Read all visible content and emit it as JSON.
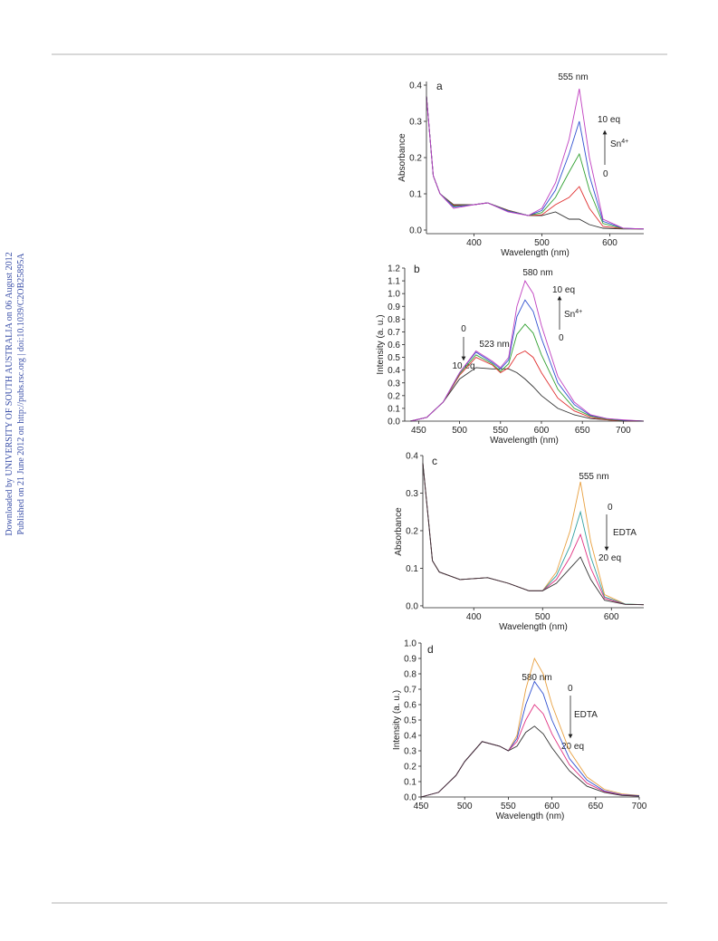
{
  "margin_notes": [
    "Downloaded by UNIVERSITY OF SOUTH AUSTRALIA on 06 August 2012",
    "Published on 21 June 2012 on http://pubs.rsc.org | doi:10.1039/C2OB25895A"
  ],
  "chart_data": [
    {
      "type": "line",
      "x_label": "Wavelength (nm)",
      "y_label": "Absorbance",
      "annotations": [
        "a",
        "555 nm",
        "10 eq",
        "Sn",
        "4+",
        "0"
      ],
      "xlim": [
        330,
        650
      ],
      "ylim": [
        -0.01,
        0.41
      ],
      "xticks": [
        400,
        500,
        600
      ],
      "yticks": [
        {
          "value": 0,
          "label": "0.0"
        },
        0.1,
        0.2,
        0.3,
        0.4
      ],
      "x": [
        330,
        340,
        350,
        370,
        400,
        420,
        450,
        480,
        500,
        520,
        540,
        555,
        570,
        590,
        620,
        650
      ],
      "series": [
        {
          "color": "#333333",
          "values": [
            0.37,
            0.15,
            0.1,
            0.07,
            0.07,
            0.075,
            0.055,
            0.04,
            0.04,
            0.05,
            0.03,
            0.03,
            0.015,
            0.005,
            0.003,
            0.003
          ]
        },
        {
          "color": "#e03030",
          "values": [
            0.37,
            0.15,
            0.1,
            0.068,
            0.07,
            0.075,
            0.054,
            0.04,
            0.042,
            0.07,
            0.09,
            0.12,
            0.06,
            0.01,
            0.004,
            0.003
          ]
        },
        {
          "color": "#30a030",
          "values": [
            0.37,
            0.15,
            0.1,
            0.066,
            0.07,
            0.075,
            0.053,
            0.04,
            0.048,
            0.09,
            0.16,
            0.21,
            0.11,
            0.018,
            0.004,
            0.003
          ]
        },
        {
          "color": "#3050d0",
          "values": [
            0.37,
            0.15,
            0.1,
            0.064,
            0.07,
            0.075,
            0.052,
            0.04,
            0.054,
            0.11,
            0.21,
            0.3,
            0.15,
            0.024,
            0.005,
            0.003
          ]
        },
        {
          "color": "#c040c0",
          "values": [
            0.37,
            0.15,
            0.1,
            0.06,
            0.07,
            0.075,
            0.05,
            0.04,
            0.06,
            0.13,
            0.25,
            0.39,
            0.2,
            0.03,
            0.005,
            0.003
          ]
        }
      ]
    },
    {
      "type": "line",
      "x_label": "Wavelength (nm)",
      "y_label": "Intensity (a. u.)",
      "annotations": [
        "b",
        "580 nm",
        "10 eq",
        "Sn",
        "4+",
        "0",
        "0",
        "10 eq",
        "523 nm"
      ],
      "xlim": [
        433,
        725
      ],
      "ylim": [
        0,
        1.2
      ],
      "xticks": [
        450,
        500,
        550,
        600,
        650,
        700
      ],
      "yticks": [
        {
          "value": 0,
          "label": "0.0"
        },
        0.1,
        0.2,
        0.3,
        0.4,
        0.5,
        0.6,
        0.7,
        0.8,
        0.9,
        {
          "value": 1,
          "label": "1.0"
        },
        1.1,
        1.2
      ],
      "x": [
        440,
        460,
        480,
        500,
        520,
        540,
        550,
        560,
        570,
        580,
        590,
        600,
        620,
        640,
        660,
        680,
        700,
        725
      ],
      "series": [
        {
          "color": "#333333",
          "values": [
            0,
            0.03,
            0.15,
            0.33,
            0.42,
            0.41,
            0.41,
            0.41,
            0.38,
            0.33,
            0.27,
            0.2,
            0.1,
            0.05,
            0.02,
            0.01,
            0,
            0
          ]
        },
        {
          "color": "#e03030",
          "values": [
            0,
            0.03,
            0.15,
            0.36,
            0.5,
            0.44,
            0.38,
            0.42,
            0.52,
            0.55,
            0.5,
            0.38,
            0.18,
            0.08,
            0.03,
            0.01,
            0,
            0
          ]
        },
        {
          "color": "#30a030",
          "values": [
            0,
            0.03,
            0.15,
            0.37,
            0.52,
            0.45,
            0.39,
            0.45,
            0.68,
            0.76,
            0.69,
            0.52,
            0.25,
            0.1,
            0.04,
            0.015,
            0.005,
            0
          ]
        },
        {
          "color": "#3050d0",
          "values": [
            0,
            0.03,
            0.15,
            0.38,
            0.54,
            0.46,
            0.41,
            0.48,
            0.82,
            0.95,
            0.86,
            0.65,
            0.3,
            0.13,
            0.045,
            0.02,
            0.008,
            0
          ]
        },
        {
          "color": "#c040c0",
          "values": [
            0,
            0.03,
            0.15,
            0.38,
            0.55,
            0.47,
            0.42,
            0.5,
            0.9,
            1.1,
            1.0,
            0.75,
            0.35,
            0.15,
            0.05,
            0.02,
            0.01,
            0
          ]
        }
      ]
    },
    {
      "type": "line",
      "x_label": "Wavelength (nm)",
      "y_label": "Absorbance",
      "annotations": [
        "c",
        "555 nm",
        "0",
        "EDTA",
        "20 eq"
      ],
      "xlim": [
        326,
        647
      ],
      "ylim": [
        -0.005,
        0.4
      ],
      "xticks": [
        400,
        500,
        600
      ],
      "yticks": [
        {
          "value": 0,
          "label": "0.0"
        },
        0.1,
        0.2,
        0.3,
        0.4
      ],
      "x": [
        326,
        340,
        350,
        380,
        420,
        450,
        480,
        500,
        520,
        540,
        555,
        570,
        590,
        620,
        647
      ],
      "series": [
        {
          "color": "#e8a040",
          "values": [
            0.38,
            0.12,
            0.09,
            0.07,
            0.075,
            0.06,
            0.04,
            0.04,
            0.09,
            0.2,
            0.33,
            0.17,
            0.03,
            0.005,
            0.003
          ]
        },
        {
          "color": "#30a0a0",
          "values": [
            0.38,
            0.12,
            0.09,
            0.07,
            0.075,
            0.06,
            0.04,
            0.04,
            0.08,
            0.16,
            0.25,
            0.13,
            0.024,
            0.005,
            0.003
          ]
        },
        {
          "color": "#e03080",
          "values": [
            0.38,
            0.12,
            0.09,
            0.07,
            0.075,
            0.06,
            0.04,
            0.04,
            0.07,
            0.13,
            0.19,
            0.1,
            0.02,
            0.004,
            0.003
          ]
        },
        {
          "color": "#333333",
          "values": [
            0.38,
            0.12,
            0.09,
            0.07,
            0.075,
            0.06,
            0.04,
            0.04,
            0.06,
            0.1,
            0.13,
            0.07,
            0.015,
            0.004,
            0.003
          ]
        }
      ]
    },
    {
      "type": "line",
      "x_label": "Wavelength (nm)",
      "y_label": "Intensity (a. u.)",
      "annotations": [
        "d",
        "580 nm",
        "0",
        "EDTA",
        "20 eq"
      ],
      "xlim": [
        450,
        700
      ],
      "ylim": [
        0,
        1.0
      ],
      "xticks": [
        450,
        500,
        550,
        600,
        650,
        700
      ],
      "yticks": [
        {
          "value": 0,
          "label": "0.0"
        },
        0.1,
        0.2,
        0.3,
        0.4,
        0.5,
        0.6,
        0.7,
        0.8,
        0.9,
        {
          "value": 1,
          "label": "1.0"
        }
      ],
      "x": [
        450,
        470,
        490,
        500,
        520,
        540,
        550,
        560,
        570,
        580,
        590,
        600,
        620,
        640,
        660,
        680,
        700
      ],
      "series": [
        {
          "color": "#e8a040",
          "values": [
            0,
            0.03,
            0.14,
            0.23,
            0.36,
            0.33,
            0.3,
            0.4,
            0.7,
            0.9,
            0.8,
            0.6,
            0.3,
            0.13,
            0.05,
            0.02,
            0.01
          ]
        },
        {
          "color": "#3050d0",
          "values": [
            0,
            0.03,
            0.14,
            0.23,
            0.36,
            0.33,
            0.3,
            0.38,
            0.6,
            0.75,
            0.67,
            0.5,
            0.25,
            0.11,
            0.04,
            0.015,
            0.008
          ]
        },
        {
          "color": "#e03080",
          "values": [
            0,
            0.03,
            0.14,
            0.23,
            0.36,
            0.33,
            0.3,
            0.36,
            0.5,
            0.6,
            0.54,
            0.41,
            0.21,
            0.09,
            0.035,
            0.012,
            0.006
          ]
        },
        {
          "color": "#333333",
          "values": [
            0,
            0.03,
            0.14,
            0.23,
            0.36,
            0.33,
            0.3,
            0.33,
            0.42,
            0.46,
            0.41,
            0.32,
            0.17,
            0.07,
            0.03,
            0.01,
            0.005
          ]
        }
      ]
    }
  ]
}
